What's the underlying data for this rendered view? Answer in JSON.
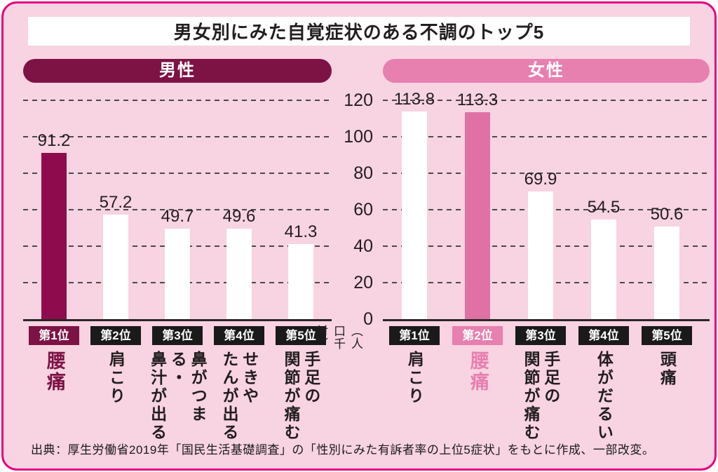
{
  "title": "男女別にみた自覚症状のある不調のトップ5",
  "source": "出典：厚生労働省2019年「国民生活基礎調査」の「性別にみた有訴者率の上位5症状」をもとに作成、一部改変。",
  "y_axis": {
    "ticks": [
      120,
      100,
      80,
      60,
      40,
      20,
      0
    ],
    "unit": "（人口千対）",
    "max": 120
  },
  "colors": {
    "page_bg": "#FFFFFF",
    "panel_bg": "#F8D3E2",
    "panel_border": "#E3007F",
    "title_bg": "#FFFFFF",
    "text": "#221E1F",
    "grid": "#4A4A4A",
    "axis_line": "#2A2627",
    "badge_bg": "#1A1A1A",
    "badge_text": "#FFFFFF",
    "bar_default": "#FFFFFF"
  },
  "chart_data": [
    {
      "type": "bar",
      "title": "男性",
      "ranks": [
        "第1位",
        "第2位",
        "第3位",
        "第4位",
        "第5位"
      ],
      "categories": [
        "腰痛",
        "肩こり",
        "鼻がつまる・鼻汁が出る",
        "せきやたんが出る",
        "手足の関節が痛む"
      ],
      "category_display": [
        "腰痛",
        "肩こり",
        "鼻がつまる・\n鼻汁が出る",
        "せきや\nたんが出る",
        "手足の\n関節が痛む"
      ],
      "values": [
        91.2,
        57.2,
        49.7,
        49.6,
        41.3
      ],
      "highlight_index": 0,
      "accent": "#7D1245",
      "bar_highlight": "#8E0C4E",
      "ylim": [
        0,
        125
      ],
      "grid": true,
      "legend": "none"
    },
    {
      "type": "bar",
      "title": "女性",
      "ranks": [
        "第1位",
        "第2位",
        "第3位",
        "第4位",
        "第5位"
      ],
      "categories": [
        "肩こり",
        "腰痛",
        "手足の関節が痛む",
        "体がだるい",
        "頭痛"
      ],
      "category_display": [
        "肩こり",
        "腰痛",
        "手足の\n関節が痛む",
        "体がだるい",
        "頭痛"
      ],
      "values": [
        113.8,
        113.3,
        69.9,
        54.5,
        50.6
      ],
      "highlight_index": 1,
      "accent": "#E77FAF",
      "bar_highlight": "#DF71A5",
      "ylim": [
        0,
        125
      ],
      "grid": true,
      "legend": "none"
    }
  ]
}
